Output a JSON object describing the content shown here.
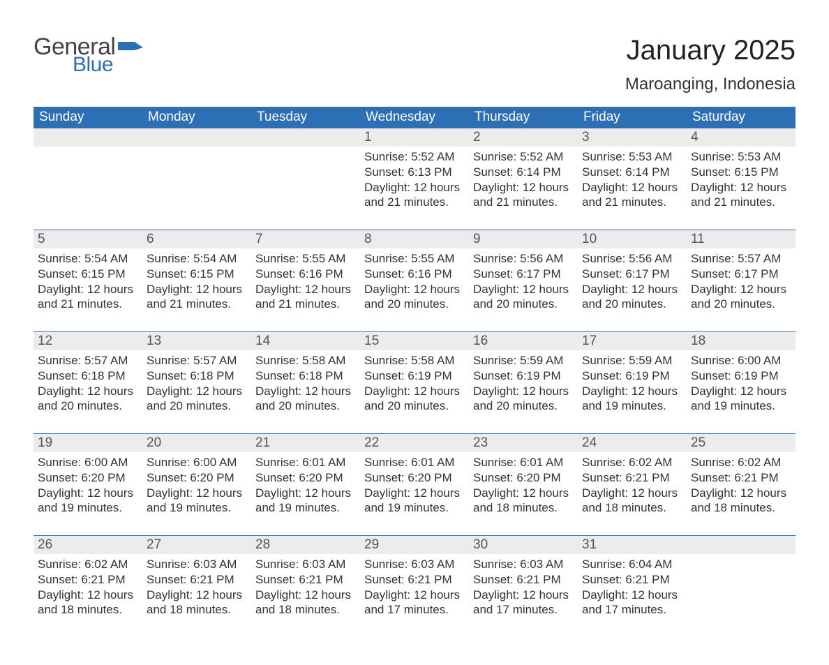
{
  "logo": {
    "word1": "General",
    "word2": "Blue",
    "word1_color": "#444444",
    "word2_color": "#2d6fb5",
    "flag_color": "#2d6fb5"
  },
  "title": {
    "main": "January 2025",
    "sub": "Maroanging, Indonesia"
  },
  "colors": {
    "header_bg": "#2d6fb5",
    "header_text": "#ffffff",
    "daynum_bg": "#ececec",
    "daynum_text": "#555555",
    "body_text": "#333333",
    "rule": "#2d6fb5",
    "page_bg": "#ffffff"
  },
  "fonts": {
    "title_main_pt": 40,
    "title_sub_pt": 24,
    "weekday_pt": 19,
    "daynum_pt": 19,
    "detail_pt": 17
  },
  "calendar": {
    "type": "table",
    "weekdays": [
      "Sunday",
      "Monday",
      "Tuesday",
      "Wednesday",
      "Thursday",
      "Friday",
      "Saturday"
    ],
    "weeks": [
      [
        {
          "day": "",
          "sunrise": "",
          "sunset": "",
          "daylight": ""
        },
        {
          "day": "",
          "sunrise": "",
          "sunset": "",
          "daylight": ""
        },
        {
          "day": "",
          "sunrise": "",
          "sunset": "",
          "daylight": ""
        },
        {
          "day": "1",
          "sunrise": "Sunrise: 5:52 AM",
          "sunset": "Sunset: 6:13 PM",
          "daylight": "Daylight: 12 hours and 21 minutes."
        },
        {
          "day": "2",
          "sunrise": "Sunrise: 5:52 AM",
          "sunset": "Sunset: 6:14 PM",
          "daylight": "Daylight: 12 hours and 21 minutes."
        },
        {
          "day": "3",
          "sunrise": "Sunrise: 5:53 AM",
          "sunset": "Sunset: 6:14 PM",
          "daylight": "Daylight: 12 hours and 21 minutes."
        },
        {
          "day": "4",
          "sunrise": "Sunrise: 5:53 AM",
          "sunset": "Sunset: 6:15 PM",
          "daylight": "Daylight: 12 hours and 21 minutes."
        }
      ],
      [
        {
          "day": "5",
          "sunrise": "Sunrise: 5:54 AM",
          "sunset": "Sunset: 6:15 PM",
          "daylight": "Daylight: 12 hours and 21 minutes."
        },
        {
          "day": "6",
          "sunrise": "Sunrise: 5:54 AM",
          "sunset": "Sunset: 6:15 PM",
          "daylight": "Daylight: 12 hours and 21 minutes."
        },
        {
          "day": "7",
          "sunrise": "Sunrise: 5:55 AM",
          "sunset": "Sunset: 6:16 PM",
          "daylight": "Daylight: 12 hours and 21 minutes."
        },
        {
          "day": "8",
          "sunrise": "Sunrise: 5:55 AM",
          "sunset": "Sunset: 6:16 PM",
          "daylight": "Daylight: 12 hours and 20 minutes."
        },
        {
          "day": "9",
          "sunrise": "Sunrise: 5:56 AM",
          "sunset": "Sunset: 6:17 PM",
          "daylight": "Daylight: 12 hours and 20 minutes."
        },
        {
          "day": "10",
          "sunrise": "Sunrise: 5:56 AM",
          "sunset": "Sunset: 6:17 PM",
          "daylight": "Daylight: 12 hours and 20 minutes."
        },
        {
          "day": "11",
          "sunrise": "Sunrise: 5:57 AM",
          "sunset": "Sunset: 6:17 PM",
          "daylight": "Daylight: 12 hours and 20 minutes."
        }
      ],
      [
        {
          "day": "12",
          "sunrise": "Sunrise: 5:57 AM",
          "sunset": "Sunset: 6:18 PM",
          "daylight": "Daylight: 12 hours and 20 minutes."
        },
        {
          "day": "13",
          "sunrise": "Sunrise: 5:57 AM",
          "sunset": "Sunset: 6:18 PM",
          "daylight": "Daylight: 12 hours and 20 minutes."
        },
        {
          "day": "14",
          "sunrise": "Sunrise: 5:58 AM",
          "sunset": "Sunset: 6:18 PM",
          "daylight": "Daylight: 12 hours and 20 minutes."
        },
        {
          "day": "15",
          "sunrise": "Sunrise: 5:58 AM",
          "sunset": "Sunset: 6:19 PM",
          "daylight": "Daylight: 12 hours and 20 minutes."
        },
        {
          "day": "16",
          "sunrise": "Sunrise: 5:59 AM",
          "sunset": "Sunset: 6:19 PM",
          "daylight": "Daylight: 12 hours and 20 minutes."
        },
        {
          "day": "17",
          "sunrise": "Sunrise: 5:59 AM",
          "sunset": "Sunset: 6:19 PM",
          "daylight": "Daylight: 12 hours and 19 minutes."
        },
        {
          "day": "18",
          "sunrise": "Sunrise: 6:00 AM",
          "sunset": "Sunset: 6:19 PM",
          "daylight": "Daylight: 12 hours and 19 minutes."
        }
      ],
      [
        {
          "day": "19",
          "sunrise": "Sunrise: 6:00 AM",
          "sunset": "Sunset: 6:20 PM",
          "daylight": "Daylight: 12 hours and 19 minutes."
        },
        {
          "day": "20",
          "sunrise": "Sunrise: 6:00 AM",
          "sunset": "Sunset: 6:20 PM",
          "daylight": "Daylight: 12 hours and 19 minutes."
        },
        {
          "day": "21",
          "sunrise": "Sunrise: 6:01 AM",
          "sunset": "Sunset: 6:20 PM",
          "daylight": "Daylight: 12 hours and 19 minutes."
        },
        {
          "day": "22",
          "sunrise": "Sunrise: 6:01 AM",
          "sunset": "Sunset: 6:20 PM",
          "daylight": "Daylight: 12 hours and 19 minutes."
        },
        {
          "day": "23",
          "sunrise": "Sunrise: 6:01 AM",
          "sunset": "Sunset: 6:20 PM",
          "daylight": "Daylight: 12 hours and 18 minutes."
        },
        {
          "day": "24",
          "sunrise": "Sunrise: 6:02 AM",
          "sunset": "Sunset: 6:21 PM",
          "daylight": "Daylight: 12 hours and 18 minutes."
        },
        {
          "day": "25",
          "sunrise": "Sunrise: 6:02 AM",
          "sunset": "Sunset: 6:21 PM",
          "daylight": "Daylight: 12 hours and 18 minutes."
        }
      ],
      [
        {
          "day": "26",
          "sunrise": "Sunrise: 6:02 AM",
          "sunset": "Sunset: 6:21 PM",
          "daylight": "Daylight: 12 hours and 18 minutes."
        },
        {
          "day": "27",
          "sunrise": "Sunrise: 6:03 AM",
          "sunset": "Sunset: 6:21 PM",
          "daylight": "Daylight: 12 hours and 18 minutes."
        },
        {
          "day": "28",
          "sunrise": "Sunrise: 6:03 AM",
          "sunset": "Sunset: 6:21 PM",
          "daylight": "Daylight: 12 hours and 18 minutes."
        },
        {
          "day": "29",
          "sunrise": "Sunrise: 6:03 AM",
          "sunset": "Sunset: 6:21 PM",
          "daylight": "Daylight: 12 hours and 17 minutes."
        },
        {
          "day": "30",
          "sunrise": "Sunrise: 6:03 AM",
          "sunset": "Sunset: 6:21 PM",
          "daylight": "Daylight: 12 hours and 17 minutes."
        },
        {
          "day": "31",
          "sunrise": "Sunrise: 6:04 AM",
          "sunset": "Sunset: 6:21 PM",
          "daylight": "Daylight: 12 hours and 17 minutes."
        },
        {
          "day": "",
          "sunrise": "",
          "sunset": "",
          "daylight": ""
        }
      ]
    ]
  }
}
